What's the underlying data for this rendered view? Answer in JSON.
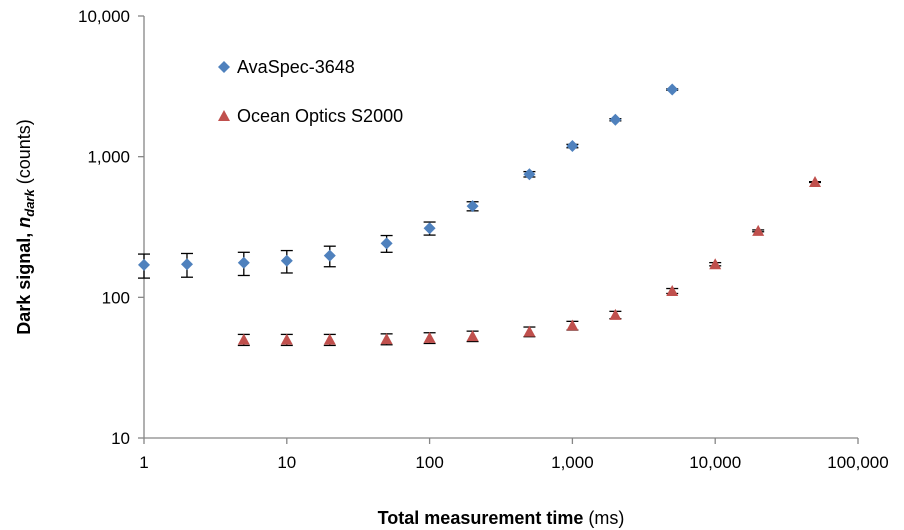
{
  "chart_data": {
    "type": "scatter",
    "x_scale": "log",
    "y_scale": "log",
    "xlim": [
      1,
      100000
    ],
    "ylim": [
      10,
      10000
    ],
    "x_ticks": [
      1,
      10,
      100,
      1000,
      10000,
      100000
    ],
    "x_tick_labels": [
      "1",
      "10",
      "100",
      "1,000",
      "10,000",
      "100,000"
    ],
    "y_ticks": [
      10,
      100,
      1000,
      10000
    ],
    "y_tick_labels": [
      "10",
      "100",
      "1,000",
      "10,000"
    ],
    "xlabel_bold": "Total measurement time",
    "xlabel_rest": " (ms)",
    "ylabel_bold": "Dark signal, ",
    "ylabel_var": "n",
    "ylabel_sub": "dark",
    "ylabel_rest": " (counts)",
    "grid": false,
    "legend_position": "top-left",
    "series": [
      {
        "name": "AvaSpec-3648",
        "marker": "diamond",
        "color": "#4f81bd",
        "x": [
          1,
          2,
          5,
          10,
          20,
          50,
          100,
          200,
          500,
          1000,
          2000,
          5000
        ],
        "y": [
          170,
          172,
          176,
          182,
          198,
          242,
          310,
          445,
          750,
          1190,
          1830,
          3000
        ],
        "y_err": [
          33,
          33,
          33,
          33,
          33,
          33,
          33,
          33,
          33,
          33,
          33,
          33
        ]
      },
      {
        "name": "Ocean Optics S2000",
        "marker": "triangle",
        "color": "#c0504d",
        "x": [
          5,
          10,
          20,
          50,
          100,
          200,
          500,
          1000,
          2000,
          5000,
          10000,
          20000,
          50000
        ],
        "y": [
          50,
          50,
          50,
          50.5,
          51.5,
          53,
          57,
          63,
          75,
          111,
          172,
          297,
          660
        ],
        "y_err": [
          4.5,
          4.5,
          4.5,
          4.5,
          4.5,
          4.5,
          4.5,
          4.5,
          4.5,
          4.5,
          4.5,
          4.5,
          4.5
        ]
      }
    ]
  }
}
